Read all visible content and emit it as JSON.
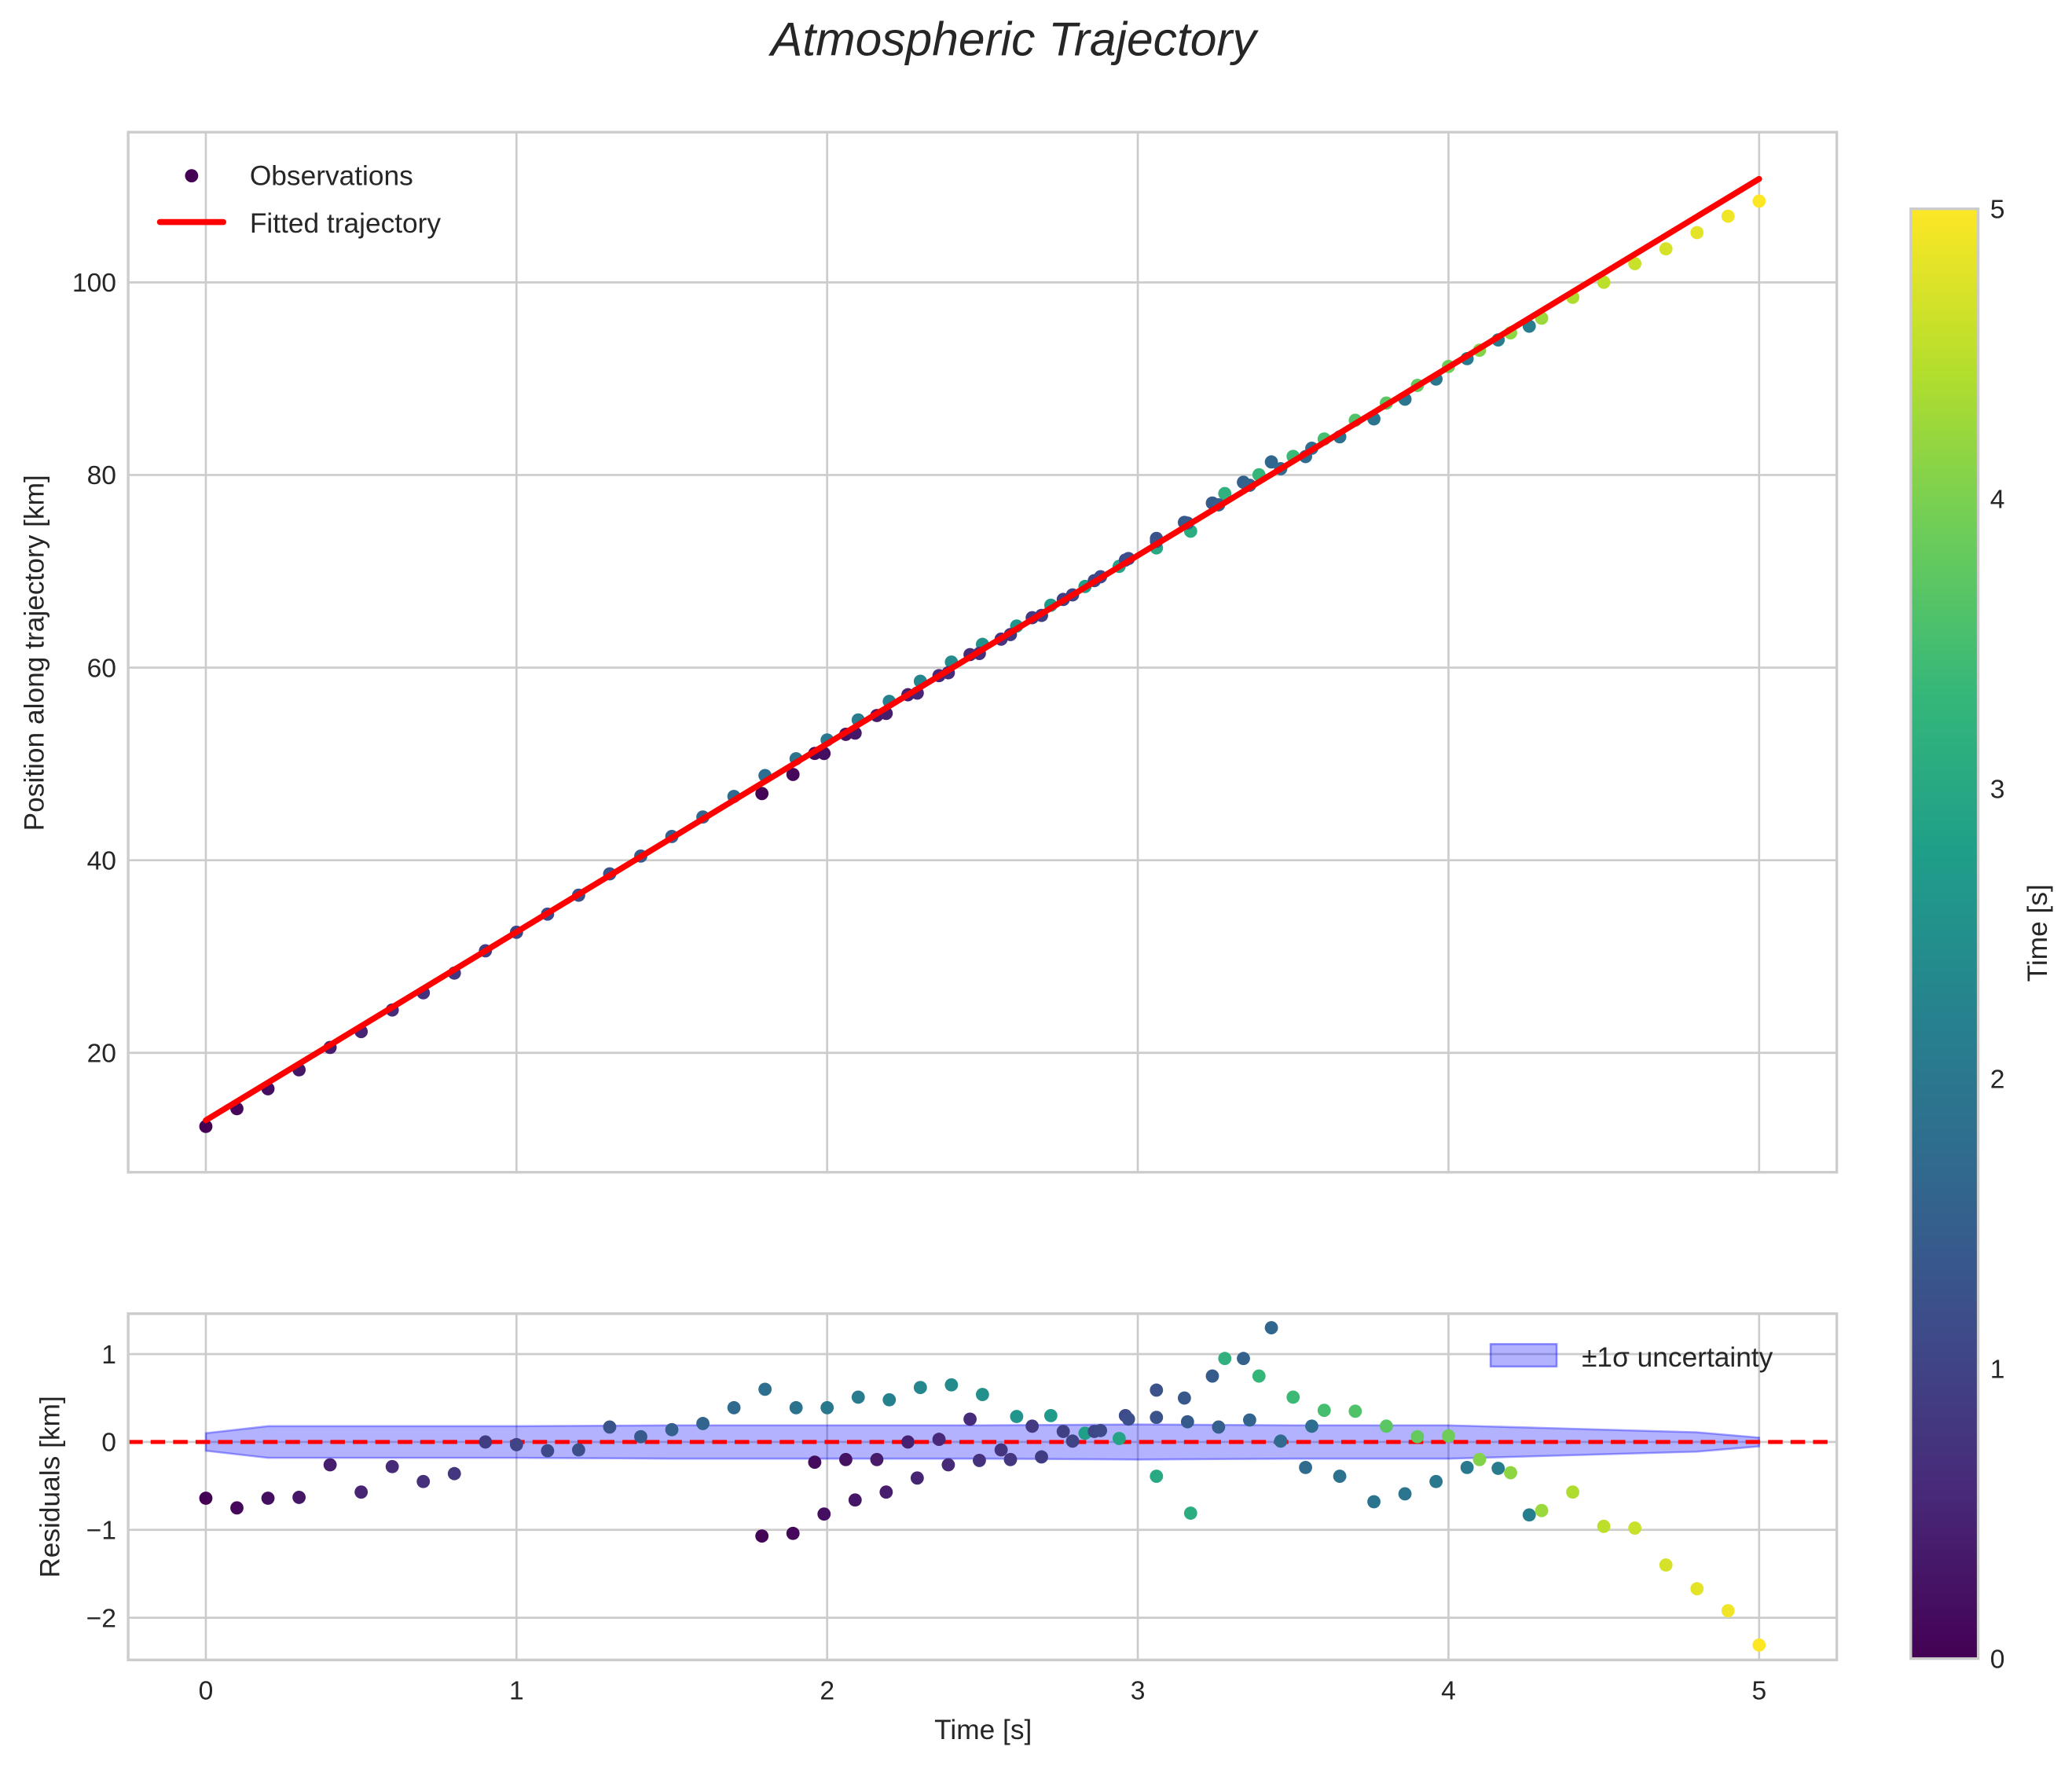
{
  "chart_data": [
    {
      "type": "scatter",
      "title": "Atmospheric Trajectory",
      "xlabel": "",
      "ylabel": "Position along trajectory [km]",
      "xlim": [
        -0.25,
        5.25
      ],
      "ylim": [
        7.6,
        115.6
      ],
      "xticks": [
        0,
        1,
        2,
        3,
        4,
        5
      ],
      "yticks": [
        20,
        40,
        60,
        80,
        100
      ],
      "xtick_labels_visible": false,
      "grid": true,
      "legend": {
        "placement": "top-left",
        "entries": [
          {
            "label": "Observations",
            "kind": "marker",
            "color": "#440154"
          },
          {
            "label": "Fitted trajectory",
            "kind": "line",
            "color": "#ff0000"
          }
        ]
      },
      "fit": {
        "name": "Fitted trajectory",
        "intercept": 13.0,
        "slope": 19.55,
        "x_range": [
          0,
          5
        ],
        "color": "#ff0000"
      },
      "series_note": "Observation position = fitted trajectory + residual (from residual panel)",
      "colormap": "viridis",
      "color_value_range": [
        0,
        5
      ]
    },
    {
      "type": "scatter",
      "title": "",
      "xlabel": "Time [s]",
      "ylabel": "Residuals [km]",
      "xlim": [
        -0.25,
        5.25
      ],
      "ylim": [
        -2.48,
        1.46
      ],
      "xticks": [
        0,
        1,
        2,
        3,
        4,
        5
      ],
      "yticks": [
        1,
        0,
        -1,
        -2
      ],
      "ytick_labels": [
        "1",
        "0",
        "−1",
        "−2"
      ],
      "grid": true,
      "zero_line": {
        "value": 0,
        "style": "dashed",
        "color": "#ff0000"
      },
      "band": {
        "label": "±1σ uncertainty",
        "color": "#0000ff",
        "alpha": 0.3,
        "x": [
          0,
          0.2,
          0.5,
          1,
          1.5,
          2,
          2.5,
          3,
          3.5,
          4,
          4.2,
          4.4,
          4.6,
          4.8,
          5
        ],
        "halfwidth": [
          0.1,
          0.18,
          0.18,
          0.18,
          0.19,
          0.19,
          0.19,
          0.2,
          0.19,
          0.19,
          0.17,
          0.15,
          0.13,
          0.11,
          0.05
        ]
      },
      "legend": {
        "placement": "top-right"
      }
    }
  ],
  "observations": {
    "primary": [
      {
        "t": 0.0,
        "r": -0.64,
        "c": 0.0
      },
      {
        "t": 0.1,
        "r": -0.75,
        "c": 0.1
      },
      {
        "t": 0.2,
        "r": -0.64,
        "c": 0.2
      },
      {
        "t": 0.3,
        "r": -0.63,
        "c": 0.3
      },
      {
        "t": 0.4,
        "r": -0.26,
        "c": 0.4
      },
      {
        "t": 0.5,
        "r": -0.57,
        "c": 0.5
      },
      {
        "t": 0.6,
        "r": -0.28,
        "c": 0.6
      },
      {
        "t": 0.7,
        "r": -0.45,
        "c": 0.7
      },
      {
        "t": 0.8,
        "r": -0.36,
        "c": 0.8
      },
      {
        "t": 0.9,
        "r": 0.0,
        "c": 0.9
      },
      {
        "t": 1.0,
        "r": -0.03,
        "c": 1.0
      },
      {
        "t": 1.1,
        "r": -0.1,
        "c": 1.1
      },
      {
        "t": 1.2,
        "r": -0.09,
        "c": 1.2
      },
      {
        "t": 1.3,
        "r": 0.17,
        "c": 1.3
      },
      {
        "t": 1.4,
        "r": 0.06,
        "c": 1.4
      },
      {
        "t": 1.5,
        "r": 0.14,
        "c": 1.5
      },
      {
        "t": 1.6,
        "r": 0.21,
        "c": 1.6
      },
      {
        "t": 1.7,
        "r": 0.39,
        "c": 1.7
      },
      {
        "t": 1.8,
        "r": 0.6,
        "c": 1.8
      },
      {
        "t": 1.9,
        "r": 0.39,
        "c": 1.9
      },
      {
        "t": 2.0,
        "r": 0.39,
        "c": 2.0
      },
      {
        "t": 2.1,
        "r": 0.51,
        "c": 2.1
      },
      {
        "t": 2.2,
        "r": 0.48,
        "c": 2.2
      },
      {
        "t": 2.3,
        "r": 0.62,
        "c": 2.3
      },
      {
        "t": 2.4,
        "r": 0.65,
        "c": 2.4
      },
      {
        "t": 2.5,
        "r": 0.54,
        "c": 2.5
      },
      {
        "t": 2.61,
        "r": 0.29,
        "c": 2.6
      },
      {
        "t": 2.72,
        "r": 0.3,
        "c": 2.7
      },
      {
        "t": 2.83,
        "r": 0.1,
        "c": 2.8
      },
      {
        "t": 2.94,
        "r": 0.04,
        "c": 2.9
      },
      {
        "t": 3.06,
        "r": -0.39,
        "c": 3.0
      },
      {
        "t": 3.17,
        "r": -0.81,
        "c": 3.1
      },
      {
        "t": 3.28,
        "r": 0.95,
        "c": 3.2
      },
      {
        "t": 3.39,
        "r": 0.75,
        "c": 3.3
      },
      {
        "t": 3.5,
        "r": 0.51,
        "c": 3.4
      },
      {
        "t": 3.6,
        "r": 0.36,
        "c": 3.5
      },
      {
        "t": 3.7,
        "r": 0.35,
        "c": 3.6
      },
      {
        "t": 3.8,
        "r": 0.18,
        "c": 3.7
      },
      {
        "t": 3.9,
        "r": 0.06,
        "c": 3.8
      },
      {
        "t": 4.0,
        "r": 0.07,
        "c": 3.9
      },
      {
        "t": 4.1,
        "r": -0.2,
        "c": 4.05
      },
      {
        "t": 4.2,
        "r": -0.35,
        "c": 4.15
      },
      {
        "t": 4.3,
        "r": -0.78,
        "c": 4.25
      },
      {
        "t": 4.4,
        "r": -0.57,
        "c": 4.4
      },
      {
        "t": 4.5,
        "r": -0.96,
        "c": 4.5
      },
      {
        "t": 4.6,
        "r": -0.98,
        "c": 4.6
      },
      {
        "t": 4.7,
        "r": -1.4,
        "c": 4.7
      },
      {
        "t": 4.8,
        "r": -1.67,
        "c": 4.8
      },
      {
        "t": 4.9,
        "r": -1.92,
        "c": 4.9
      },
      {
        "t": 5.0,
        "r": -2.31,
        "c": 5.0
      }
    ],
    "secondary": [
      {
        "t": 1.79,
        "r": -1.07,
        "c": 0.05
      },
      {
        "t": 1.89,
        "r": -1.04,
        "c": 0.1
      },
      {
        "t": 1.99,
        "r": -0.82,
        "c": 0.2
      },
      {
        "t": 1.96,
        "r": -0.23,
        "c": 0.15
      },
      {
        "t": 2.06,
        "r": -0.2,
        "c": 0.25
      },
      {
        "t": 2.09,
        "r": -0.66,
        "c": 0.3
      },
      {
        "t": 2.16,
        "r": -0.2,
        "c": 0.35
      },
      {
        "t": 2.19,
        "r": -0.57,
        "c": 0.4
      },
      {
        "t": 2.26,
        "r": 0.0,
        "c": 0.45
      },
      {
        "t": 2.29,
        "r": -0.41,
        "c": 0.5
      },
      {
        "t": 2.36,
        "r": 0.03,
        "c": 0.55
      },
      {
        "t": 2.39,
        "r": -0.26,
        "c": 0.6
      },
      {
        "t": 2.46,
        "r": 0.26,
        "c": 0.62
      },
      {
        "t": 2.49,
        "r": -0.21,
        "c": 0.7
      },
      {
        "t": 2.56,
        "r": -0.09,
        "c": 0.75
      },
      {
        "t": 2.59,
        "r": -0.2,
        "c": 0.8
      },
      {
        "t": 2.66,
        "r": 0.18,
        "c": 0.85
      },
      {
        "t": 2.69,
        "r": -0.17,
        "c": 0.9
      },
      {
        "t": 2.76,
        "r": 0.12,
        "c": 0.95
      },
      {
        "t": 2.79,
        "r": 0.01,
        "c": 1.0
      },
      {
        "t": 2.86,
        "r": 0.12,
        "c": 1.05
      },
      {
        "t": 2.88,
        "r": 0.13,
        "c": 1.1
      },
      {
        "t": 2.96,
        "r": 0.3,
        "c": 1.15
      },
      {
        "t": 2.97,
        "r": 0.26,
        "c": 1.2
      },
      {
        "t": 3.06,
        "r": 0.59,
        "c": 1.25
      },
      {
        "t": 3.06,
        "r": 0.28,
        "c": 1.3
      },
      {
        "t": 3.15,
        "r": 0.5,
        "c": 1.35
      },
      {
        "t": 3.16,
        "r": 0.23,
        "c": 1.4
      },
      {
        "t": 3.24,
        "r": 0.75,
        "c": 1.45
      },
      {
        "t": 3.26,
        "r": 0.17,
        "c": 1.5
      },
      {
        "t": 3.34,
        "r": 0.95,
        "c": 1.55
      },
      {
        "t": 3.36,
        "r": 0.25,
        "c": 1.6
      },
      {
        "t": 3.43,
        "r": 1.3,
        "c": 1.65
      },
      {
        "t": 3.46,
        "r": 0.01,
        "c": 1.7
      },
      {
        "t": 3.54,
        "r": -0.29,
        "c": 1.75
      },
      {
        "t": 3.56,
        "r": 0.18,
        "c": 1.8
      },
      {
        "t": 3.65,
        "r": -0.39,
        "c": 1.85
      },
      {
        "t": 3.76,
        "r": -0.68,
        "c": 1.9
      },
      {
        "t": 3.86,
        "r": -0.59,
        "c": 1.95
      },
      {
        "t": 3.96,
        "r": -0.45,
        "c": 2.0
      },
      {
        "t": 4.06,
        "r": -0.29,
        "c": 2.05
      },
      {
        "t": 4.16,
        "r": -0.3,
        "c": 2.1
      },
      {
        "t": 4.26,
        "r": -0.83,
        "c": 2.15
      }
    ]
  },
  "colorbar": {
    "label": "Time [s]",
    "ticks": [
      "0",
      "1",
      "2",
      "3",
      "4",
      "5"
    ],
    "range": [
      0,
      5
    ],
    "colormap": "viridis"
  },
  "text": {
    "title": "Atmospheric Trajectory",
    "top_ylabel": "Position along trajectory [km]",
    "bottom_ylabel": "Residuals [km]",
    "bottom_xlabel": "Time [s]",
    "legend_obs": "Observations",
    "legend_fit": "Fitted trajectory",
    "legend_band": "±1σ uncertainty",
    "top_yticks": [
      "20",
      "40",
      "60",
      "80",
      "100"
    ],
    "bottom_yticks": [
      "1",
      "0",
      "−1",
      "−2"
    ],
    "xticks": [
      "0",
      "1",
      "2",
      "3",
      "4",
      "5"
    ]
  }
}
